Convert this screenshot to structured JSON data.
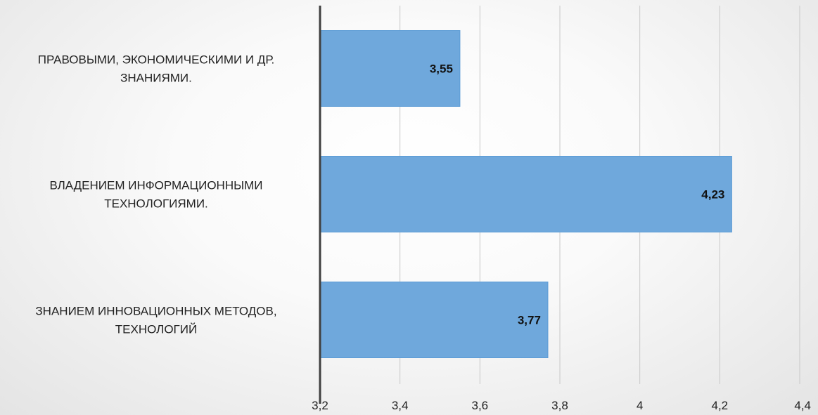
{
  "chart_data": {
    "type": "bar",
    "orientation": "horizontal",
    "categories": [
      [
        "ПРАВОВЫМИ, ЭКОНОМИЧЕСКИМИ И ДР.",
        "ЗНАНИЯМИ."
      ],
      [
        "ВЛАДЕНИЕМ ИНФОРМАЦИОННЫМИ",
        "ТЕХНОЛОГИЯМИ."
      ],
      [
        "ЗНАНИЕМ ИННОВАЦИОННЫХ МЕТОДОВ,",
        "ТЕХНОЛОГИЙ"
      ]
    ],
    "values": [
      3.55,
      4.23,
      3.77
    ],
    "data_labels": [
      "3,55",
      "4,23",
      "3,77"
    ],
    "xlim": [
      3.2,
      4.4
    ],
    "ticks": [
      3.2,
      3.4,
      3.6,
      3.8,
      4.0,
      4.2,
      4.4
    ],
    "tick_labels": [
      "3,2",
      "3,4",
      "3,6",
      "3,8",
      "4",
      "4,2",
      "4,4"
    ],
    "title": "",
    "xlabel": "",
    "ylabel": "",
    "grid": "vertical",
    "legend": "none",
    "colors": {
      "bar_fill": "#6fa8dc",
      "bar_stroke": "#5b9bd5",
      "gridline": "#c8c8c8",
      "axis": "#404040"
    }
  }
}
